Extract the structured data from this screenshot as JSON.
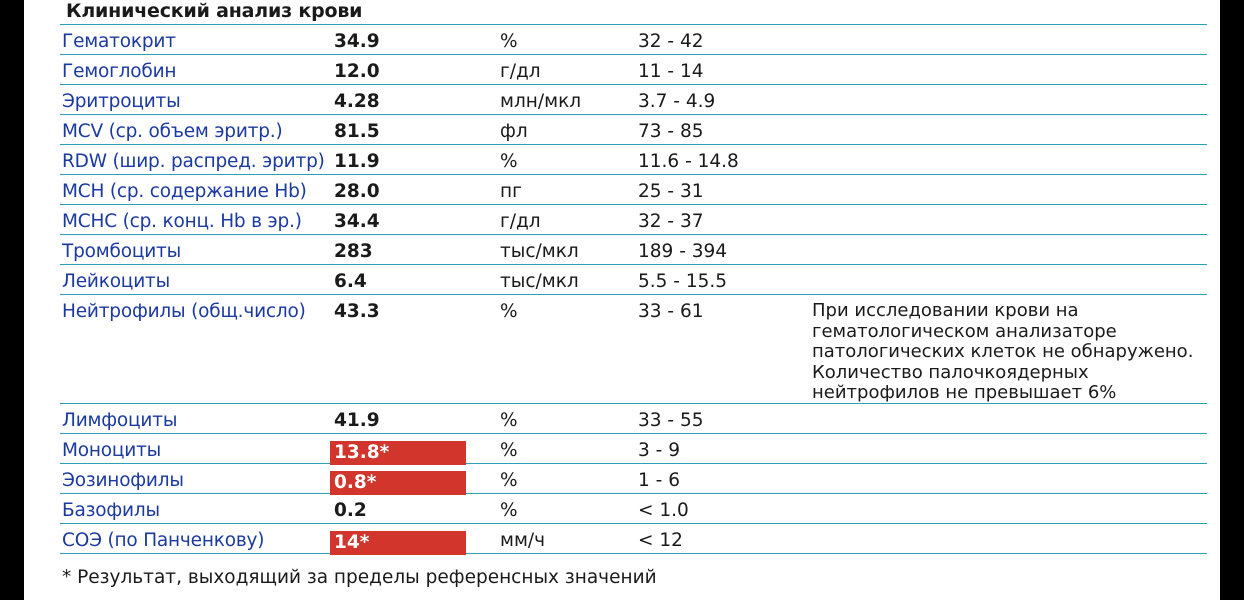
{
  "report": {
    "title": "Клинический анализ крови",
    "rows": [
      {
        "name": "Гематокрит",
        "value": "34.9",
        "unit": "%",
        "ref": "32 - 42",
        "flag": false
      },
      {
        "name": "Гемоглобин",
        "value": "12.0",
        "unit": "г/дл",
        "ref": "11 - 14",
        "flag": false
      },
      {
        "name": "Эритроциты",
        "value": "4.28",
        "unit": "млн/мкл",
        "ref": "3.7 - 4.9",
        "flag": false
      },
      {
        "name": "MCV (ср. объем эритр.)",
        "value": "81.5",
        "unit": "фл",
        "ref": "73 - 85",
        "flag": false
      },
      {
        "name": "RDW (шир. распред. эритр)",
        "value": "11.9",
        "unit": "%",
        "ref": "11.6 - 14.8",
        "flag": false
      },
      {
        "name": "MCH (ср. содержание Hb)",
        "value": "28.0",
        "unit": "пг",
        "ref": "25 - 31",
        "flag": false
      },
      {
        "name": "MCHC (ср. конц. Hb в эр.)",
        "value": "34.4",
        "unit": "г/дл",
        "ref": "32 - 37",
        "flag": false
      },
      {
        "name": "Тромбоциты",
        "value": "283",
        "unit": "тыс/мкл",
        "ref": "189 - 394",
        "flag": false
      },
      {
        "name": "Лейкоциты",
        "value": "6.4",
        "unit": "тыс/мкл",
        "ref": "5.5 - 15.5",
        "flag": false
      },
      {
        "name": "Нейтрофилы (общ.число)",
        "value": "43.3",
        "unit": "%",
        "ref": "33 - 61",
        "flag": false
      },
      {
        "name": "Лимфоциты",
        "value": "41.9",
        "unit": "%",
        "ref": "33 - 55",
        "flag": false
      },
      {
        "name": "Моноциты",
        "value": "13.8*",
        "unit": "%",
        "ref": "3 - 9",
        "flag": true
      },
      {
        "name": "Эозинофилы",
        "value": "0.8*",
        "unit": "%",
        "ref": "1 - 6",
        "flag": true
      },
      {
        "name": "Базофилы",
        "value": "0.2",
        "unit": "%",
        "ref": "< 1.0",
        "flag": false
      },
      {
        "name": "СОЭ (по Панченкову)",
        "value": "14*",
        "unit": "мм/ч",
        "ref": "< 12",
        "flag": true
      }
    ],
    "note": "При исследовании крови на\nгематологическом анализаторе\nпатологических клеток не обнаружено.\nКоличество палочкоядерных\nнейтрофилов не превышает 6%",
    "footnote": "* Результат, выходящий за пределы референсных значений"
  },
  "colors": {
    "rule": "#2aa0b4",
    "name_text": "#1b3aa0",
    "flag_bg": "#d2352c",
    "flag_text": "#ffffff"
  }
}
